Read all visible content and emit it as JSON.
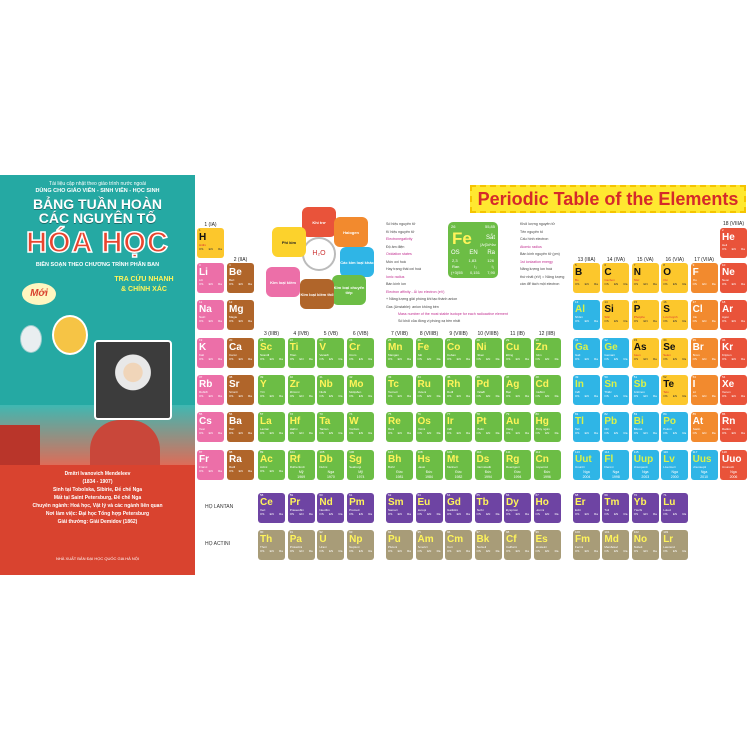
{
  "cover": {
    "tagline": "Tài liệu cập nhật theo giáo trình nước ngoài",
    "audience": "DÙNG CHO GIÁO VIÊN - SINH VIÊN - HỌC SINH",
    "title_line1": "BẢNG TUẦN HOÀN",
    "title_line2": "CÁC NGUYÊN TỐ",
    "title_main": "HÓA HỌC",
    "subtitle": "BIÊN SOẠN THEO CHƯƠNG TRÌNH PHÂN BAN",
    "badge": "Mới",
    "slogan_line1": "TRA CỨU NHANH",
    "slogan_line2": "& CHÍNH XÁC",
    "bio": [
      "Dmitri Ivanovich Mendeleev",
      "(1834 - 1907)",
      "Sinh tại Tobolska, Sibirie, Đế chế Nga",
      "Mất tại Saint Petersburg, Đế chế Nga",
      "Chuyên ngành: Hoá học, Vật lý và các ngành liên quan",
      "Nơi làm việc: Đại học Tổng hợp Petersburg",
      "Giải thưởng: Giải Demidov (1862)"
    ],
    "publisher": "NHÀ XUẤT BẢN ĐẠI HỌC QUỐC GIA HÀ NỘI"
  },
  "banner": "Periodic Table of the Elements",
  "legend_wheel": {
    "center": "H₂O",
    "categories": [
      {
        "label": "Khí trơ",
        "color": "#e9533a"
      },
      {
        "label": "Halogen",
        "color": "#f28a2e"
      },
      {
        "label": "Các kim loại khác",
        "color": "#2fb5e6"
      },
      {
        "label": "Kim loại chuyển tiếp",
        "color": "#6cbd45"
      },
      {
        "label": "Kim loại kiềm thổ",
        "color": "#b0652a"
      },
      {
        "label": "Kim loại kiềm",
        "color": "#ec6fa8"
      },
      {
        "label": "Phi kim",
        "color": "#fcd22c"
      }
    ]
  },
  "key": {
    "z": "26",
    "symbol": "Fe",
    "mass": "55,85",
    "name": "Sắt",
    "config": "[Ar]3d⁶4s²",
    "headers": [
      "OS",
      "EN",
      "Ra"
    ],
    "values": [
      "2,3",
      "1,83",
      "126"
    ],
    "row2": [
      "Ran",
      "I₁",
      "I₁"
    ],
    "row2_values": [
      "(+3)55",
      "0,151",
      "7,90"
    ],
    "labels_left": [
      "Số hiệu nguyên tử",
      "Kí hiệu nguyên tử",
      "Electronegativity",
      "Độ âm điện",
      "Oxidation states",
      "Mức oxi hoá",
      "Hay trạng thái oxi hoá",
      "Ionic radius",
      "Bán kính ion",
      "Electron affinity - Ái lực electron (eV)",
      "+ Năng lượng giải phóng khi tạo thành anion",
      "Gas (Unstable): anion không bền"
    ],
    "labels_right": [
      "Khối lượng nguyên tử",
      "Tên nguyên tố",
      "Cấu hình electron",
      "Atomic radius",
      "Bán kính nguyên tử (pm)",
      "1st ionization energy",
      "Năng lượng ion hoá",
      "thứ nhất (eV) = Năng lượng",
      "cần để tách một electron",
      "Mass number of the most stable isotope for each radioactive element",
      "Số khối của đồng vị phóng xạ bền nhất"
    ]
  },
  "group_labels": {
    "1": "1 (IA)",
    "2": "2 (IIA)",
    "3": "3 (IIIB)",
    "4": "4 (IVB)",
    "5": "5 (VB)",
    "6": "6 (VIB)",
    "7": "7 (VIIB)",
    "8": "8 (VIIIB)",
    "9": "9 (VIIIB)",
    "10": "10 (VIIIB)",
    "11": "11 (IB)",
    "12": "12 (IIB)",
    "13": "13 (IIIA)",
    "14": "14 (IVA)",
    "15": "15 (VA)",
    "16": "16 (VIA)",
    "17": "17 (VIIA)",
    "18": "18 (VIIIA)"
  },
  "cell_headers": [
    "OS",
    "EN",
    "Ra"
  ],
  "category_colors": {
    "alkali": "#ec6fa8",
    "alkaline": "#b0652a",
    "transition": "#6cbd45",
    "nonmetal": "#fcc72c",
    "halogen": "#f28a2e",
    "noble": "#e9533a",
    "metal": "#2fb5e6",
    "lanthanide": "#6e44a3",
    "actinide": "#a89c78"
  },
  "elements": [
    {
      "z": 1,
      "s": "H",
      "name": "Hiđro",
      "g": 1,
      "p": 1,
      "c": "nonmetal"
    },
    {
      "z": 2,
      "s": "He",
      "name": "Heli",
      "g": 18,
      "p": 1,
      "c": "noble"
    },
    {
      "z": 3,
      "s": "Li",
      "name": "Liti",
      "g": 1,
      "p": 2,
      "c": "alkali"
    },
    {
      "z": 4,
      "s": "Be",
      "name": "Beri",
      "g": 2,
      "p": 2,
      "c": "alkaline"
    },
    {
      "z": 5,
      "s": "B",
      "name": "Bo",
      "g": 13,
      "p": 2,
      "c": "nonmetal"
    },
    {
      "z": 6,
      "s": "C",
      "name": "Cacbon",
      "g": 14,
      "p": 2,
      "c": "nonmetal"
    },
    {
      "z": 7,
      "s": "N",
      "name": "Nitơ",
      "g": 15,
      "p": 2,
      "c": "nonmetal"
    },
    {
      "z": 8,
      "s": "O",
      "name": "Oxi",
      "g": 16,
      "p": 2,
      "c": "nonmetal"
    },
    {
      "z": 9,
      "s": "F",
      "name": "Flo",
      "g": 17,
      "p": 2,
      "c": "halogen"
    },
    {
      "z": 10,
      "s": "Ne",
      "name": "Neon",
      "g": 18,
      "p": 2,
      "c": "noble"
    },
    {
      "z": 11,
      "s": "Na",
      "name": "Natri",
      "g": 1,
      "p": 3,
      "c": "alkali"
    },
    {
      "z": 12,
      "s": "Mg",
      "name": "Magie",
      "g": 2,
      "p": 3,
      "c": "alkaline"
    },
    {
      "z": 13,
      "s": "Al",
      "name": "Nhôm",
      "g": 13,
      "p": 3,
      "c": "metal"
    },
    {
      "z": 14,
      "s": "Si",
      "name": "Silic",
      "g": 14,
      "p": 3,
      "c": "nonmetal"
    },
    {
      "z": 15,
      "s": "P",
      "name": "Photpho",
      "g": 15,
      "p": 3,
      "c": "nonmetal"
    },
    {
      "z": 16,
      "s": "S",
      "name": "Lưu huỳnh",
      "g": 16,
      "p": 3,
      "c": "nonmetal"
    },
    {
      "z": 17,
      "s": "Cl",
      "name": "Clo",
      "g": 17,
      "p": 3,
      "c": "halogen"
    },
    {
      "z": 18,
      "s": "Ar",
      "name": "Agon",
      "g": 18,
      "p": 3,
      "c": "noble"
    },
    {
      "z": 19,
      "s": "K",
      "name": "Kali",
      "g": 1,
      "p": 4,
      "c": "alkali"
    },
    {
      "z": 20,
      "s": "Ca",
      "name": "Canxi",
      "g": 2,
      "p": 4,
      "c": "alkaline"
    },
    {
      "z": 21,
      "s": "Sc",
      "name": "Scanđi",
      "g": 3,
      "p": 4,
      "c": "transition"
    },
    {
      "z": 22,
      "s": "Ti",
      "name": "Titan",
      "g": 4,
      "p": 4,
      "c": "transition"
    },
    {
      "z": 23,
      "s": "V",
      "name": "Vanađi",
      "g": 5,
      "p": 4,
      "c": "transition"
    },
    {
      "z": 24,
      "s": "Cr",
      "name": "Crom",
      "g": 6,
      "p": 4,
      "c": "transition"
    },
    {
      "z": 25,
      "s": "Mn",
      "name": "Mangan",
      "g": 7,
      "p": 4,
      "c": "transition"
    },
    {
      "z": 26,
      "s": "Fe",
      "name": "Sắt",
      "g": 8,
      "p": 4,
      "c": "transition"
    },
    {
      "z": 27,
      "s": "Co",
      "name": "Coban",
      "g": 9,
      "p": 4,
      "c": "transition"
    },
    {
      "z": 28,
      "s": "Ni",
      "name": "Niken",
      "g": 10,
      "p": 4,
      "c": "transition"
    },
    {
      "z": 29,
      "s": "Cu",
      "name": "Đồng",
      "g": 11,
      "p": 4,
      "c": "transition"
    },
    {
      "z": 30,
      "s": "Zn",
      "name": "Kẽm",
      "g": 12,
      "p": 4,
      "c": "transition"
    },
    {
      "z": 31,
      "s": "Ga",
      "name": "Gali",
      "g": 13,
      "p": 4,
      "c": "metal"
    },
    {
      "z": 32,
      "s": "Ge",
      "name": "Gemani",
      "g": 14,
      "p": 4,
      "c": "metal"
    },
    {
      "z": 33,
      "s": "As",
      "name": "Asen",
      "g": 15,
      "p": 4,
      "c": "nonmetal"
    },
    {
      "z": 34,
      "s": "Se",
      "name": "Selen",
      "g": 16,
      "p": 4,
      "c": "nonmetal"
    },
    {
      "z": 35,
      "s": "Br",
      "name": "Brom",
      "g": 17,
      "p": 4,
      "c": "halogen"
    },
    {
      "z": 36,
      "s": "Kr",
      "name": "Kripton",
      "g": 18,
      "p": 4,
      "c": "noble"
    },
    {
      "z": 37,
      "s": "Rb",
      "name": "Rubiđi",
      "g": 1,
      "p": 5,
      "c": "alkali"
    },
    {
      "z": 38,
      "s": "Sr",
      "name": "Stronti",
      "g": 2,
      "p": 5,
      "c": "alkaline"
    },
    {
      "z": 39,
      "s": "Y",
      "name": "Ytri",
      "g": 3,
      "p": 5,
      "c": "transition"
    },
    {
      "z": 40,
      "s": "Zr",
      "name": "Ziriconi",
      "g": 4,
      "p": 5,
      "c": "transition"
    },
    {
      "z": 41,
      "s": "Nb",
      "name": "Niobi",
      "g": 5,
      "p": 5,
      "c": "transition"
    },
    {
      "z": 42,
      "s": "Mo",
      "name": "Molipđen",
      "g": 6,
      "p": 5,
      "c": "transition"
    },
    {
      "z": 43,
      "s": "Tc",
      "name": "Tecneti",
      "g": 7,
      "p": 5,
      "c": "transition"
    },
    {
      "z": 44,
      "s": "Ru",
      "name": "Ruteni",
      "g": 8,
      "p": 5,
      "c": "transition"
    },
    {
      "z": 45,
      "s": "Rh",
      "name": "Rođi",
      "g": 9,
      "p": 5,
      "c": "transition"
    },
    {
      "z": 46,
      "s": "Pd",
      "name": "Palađi",
      "g": 10,
      "p": 5,
      "c": "transition"
    },
    {
      "z": 47,
      "s": "Ag",
      "name": "Bạc",
      "g": 11,
      "p": 5,
      "c": "transition"
    },
    {
      "z": 48,
      "s": "Cd",
      "name": "Cađimi",
      "g": 12,
      "p": 5,
      "c": "transition"
    },
    {
      "z": 49,
      "s": "In",
      "name": "Inđi",
      "g": 13,
      "p": 5,
      "c": "metal"
    },
    {
      "z": 50,
      "s": "Sn",
      "name": "Thiếc",
      "g": 14,
      "p": 5,
      "c": "metal"
    },
    {
      "z": 51,
      "s": "Sb",
      "name": "Antimon",
      "g": 15,
      "p": 5,
      "c": "metal"
    },
    {
      "z": 52,
      "s": "Te",
      "name": "Telu",
      "g": 16,
      "p": 5,
      "c": "nonmetal"
    },
    {
      "z": 53,
      "s": "I",
      "name": "Iot",
      "g": 17,
      "p": 5,
      "c": "halogen"
    },
    {
      "z": 54,
      "s": "Xe",
      "name": "Xenon",
      "g": 18,
      "p": 5,
      "c": "noble"
    },
    {
      "z": 55,
      "s": "Cs",
      "name": "Xesi",
      "g": 1,
      "p": 6,
      "c": "alkali"
    },
    {
      "z": 56,
      "s": "Ba",
      "name": "Bari",
      "g": 2,
      "p": 6,
      "c": "alkaline"
    },
    {
      "z": 57,
      "s": "La",
      "name": "Lantan",
      "g": 3,
      "p": 6,
      "c": "transition"
    },
    {
      "z": 72,
      "s": "Hf",
      "name": "Hafini",
      "g": 4,
      "p": 6,
      "c": "transition"
    },
    {
      "z": 73,
      "s": "Ta",
      "name": "Tantan",
      "g": 5,
      "p": 6,
      "c": "transition"
    },
    {
      "z": 74,
      "s": "W",
      "name": "Vonfam",
      "g": 6,
      "p": 6,
      "c": "transition"
    },
    {
      "z": 75,
      "s": "Re",
      "name": "Reni",
      "g": 7,
      "p": 6,
      "c": "transition"
    },
    {
      "z": 76,
      "s": "Os",
      "name": "Osimi",
      "g": 8,
      "p": 6,
      "c": "transition"
    },
    {
      "z": 77,
      "s": "Ir",
      "name": "Iriđi",
      "g": 9,
      "p": 6,
      "c": "transition"
    },
    {
      "z": 78,
      "s": "Pt",
      "name": "Platin",
      "g": 10,
      "p": 6,
      "c": "transition"
    },
    {
      "z": 79,
      "s": "Au",
      "name": "Vàng",
      "g": 11,
      "p": 6,
      "c": "transition"
    },
    {
      "z": 80,
      "s": "Hg",
      "name": "Thủy ngân",
      "g": 12,
      "p": 6,
      "c": "transition"
    },
    {
      "z": 81,
      "s": "Tl",
      "name": "Tali",
      "g": 13,
      "p": 6,
      "c": "metal"
    },
    {
      "z": 82,
      "s": "Pb",
      "name": "Chì",
      "g": 14,
      "p": 6,
      "c": "metal"
    },
    {
      "z": 83,
      "s": "Bi",
      "name": "Bitmut",
      "g": 15,
      "p": 6,
      "c": "metal"
    },
    {
      "z": 84,
      "s": "Po",
      "name": "Poloni",
      "g": 16,
      "p": 6,
      "c": "metal"
    },
    {
      "z": 85,
      "s": "At",
      "name": "Atatin",
      "g": 17,
      "p": 6,
      "c": "halogen"
    },
    {
      "z": 86,
      "s": "Rn",
      "name": "Rađon",
      "g": 18,
      "p": 6,
      "c": "noble"
    },
    {
      "z": 87,
      "s": "Fr",
      "name": "Franxi",
      "g": 1,
      "p": 7,
      "c": "alkali"
    },
    {
      "z": 88,
      "s": "Ra",
      "name": "Rađi",
      "g": 2,
      "p": 7,
      "c": "alkaline"
    },
    {
      "z": 89,
      "s": "Ac",
      "name": "Actini",
      "g": 3,
      "p": 7,
      "c": "transition"
    },
    {
      "z": 104,
      "s": "Rf",
      "name": "Rutherfordi",
      "g": 4,
      "p": 7,
      "c": "transition",
      "country": "Mỹ",
      "year": "1969"
    },
    {
      "z": 105,
      "s": "Db",
      "name": "Dubni",
      "g": 5,
      "p": 7,
      "c": "transition",
      "country": "Nga",
      "year": "1970"
    },
    {
      "z": 106,
      "s": "Sg",
      "name": "Seaborgi",
      "g": 6,
      "p": 7,
      "c": "transition",
      "country": "Mỹ",
      "year": "1974"
    },
    {
      "z": 107,
      "s": "Bh",
      "name": "Bohri",
      "g": 7,
      "p": 7,
      "c": "transition",
      "country": "Đức",
      "year": "1981"
    },
    {
      "z": 108,
      "s": "Hs",
      "name": "Hassi",
      "g": 8,
      "p": 7,
      "c": "transition",
      "country": "Đức",
      "year": "1984"
    },
    {
      "z": 109,
      "s": "Mt",
      "name": "Meitneri",
      "g": 9,
      "p": 7,
      "c": "transition",
      "country": "Đức",
      "year": "1982"
    },
    {
      "z": 110,
      "s": "Ds",
      "name": "Darmstadti",
      "g": 10,
      "p": 7,
      "c": "transition",
      "country": "Đức",
      "year": "1994"
    },
    {
      "z": 111,
      "s": "Rg",
      "name": "Roentgeni",
      "g": 11,
      "p": 7,
      "c": "transition",
      "country": "Đức",
      "year": "1994"
    },
    {
      "z": 112,
      "s": "Cn",
      "name": "Copernixi",
      "g": 12,
      "p": 7,
      "c": "transition",
      "country": "Đức",
      "year": "1996"
    },
    {
      "z": 113,
      "s": "Uut",
      "name": "Ununtri",
      "g": 13,
      "p": 7,
      "c": "metal",
      "country": "Nga",
      "year": "2004"
    },
    {
      "z": 114,
      "s": "Fl",
      "name": "Flerovi",
      "g": 14,
      "p": 7,
      "c": "metal",
      "country": "Nga",
      "year": "1998"
    },
    {
      "z": 115,
      "s": "Uup",
      "name": "Ununpenti",
      "g": 15,
      "p": 7,
      "c": "metal",
      "country": "Nga",
      "year": "2003"
    },
    {
      "z": 116,
      "s": "Lv",
      "name": "Livermori",
      "g": 16,
      "p": 7,
      "c": "metal",
      "country": "Nga",
      "year": "2000"
    },
    {
      "z": 117,
      "s": "Uus",
      "name": "Ununsepti",
      "g": 17,
      "p": 7,
      "c": "metal",
      "country": "Nga",
      "year": "2010"
    },
    {
      "z": 118,
      "s": "Uuo",
      "name": "Ununocti",
      "g": 18,
      "p": 7,
      "c": "noble",
      "country": "Nga",
      "year": "2006"
    }
  ],
  "series": [
    {
      "label": "HỌ LANTAN",
      "c": "lanthanide",
      "elements": [
        {
          "z": 58,
          "s": "Ce",
          "name": "Xeri"
        },
        {
          "z": 59,
          "s": "Pr",
          "name": "Praseođim"
        },
        {
          "z": 60,
          "s": "Nd",
          "name": "Neođim"
        },
        {
          "z": 61,
          "s": "Pm",
          "name": "Prometi"
        },
        {
          "z": 62,
          "s": "Sm",
          "name": "Samari"
        },
        {
          "z": 63,
          "s": "Eu",
          "name": "Europi"
        },
        {
          "z": 64,
          "s": "Gd",
          "name": "Gađolini"
        },
        {
          "z": 65,
          "s": "Tb",
          "name": "Tecbi"
        },
        {
          "z": 66,
          "s": "Dy",
          "name": "Đysprosi"
        },
        {
          "z": 67,
          "s": "Ho",
          "name": "Honmi"
        },
        {
          "z": 68,
          "s": "Er",
          "name": "Ecbi"
        },
        {
          "z": 69,
          "s": "Tm",
          "name": "Tuli"
        },
        {
          "z": 70,
          "s": "Yb",
          "name": "Ytecbi"
        },
        {
          "z": 71,
          "s": "Lu",
          "name": "Lutexi"
        }
      ]
    },
    {
      "label": "HỌ ACTINI",
      "c": "actinide",
      "elements": [
        {
          "z": 90,
          "s": "Th",
          "name": "Thori"
        },
        {
          "z": 91,
          "s": "Pa",
          "name": "Protactini"
        },
        {
          "z": 92,
          "s": "U",
          "name": "Urani"
        },
        {
          "z": 93,
          "s": "Np",
          "name": "Neptuni"
        },
        {
          "z": 94,
          "s": "Pu",
          "name": "Plutoni"
        },
        {
          "z": 95,
          "s": "Am",
          "name": "Americi"
        },
        {
          "z": 96,
          "s": "Cm",
          "name": "Curi"
        },
        {
          "z": 97,
          "s": "Bk",
          "name": "Beckeli"
        },
        {
          "z": 98,
          "s": "Cf",
          "name": "Californi"
        },
        {
          "z": 99,
          "s": "Es",
          "name": "Einsteini"
        },
        {
          "z": 100,
          "s": "Fm",
          "name": "Fecmi"
        },
        {
          "z": 101,
          "s": "Md",
          "name": "Menđelevi"
        },
        {
          "z": 102,
          "s": "No",
          "name": "Nobeli"
        },
        {
          "z": 103,
          "s": "Lr",
          "name": "Lawrenxi"
        }
      ]
    }
  ]
}
